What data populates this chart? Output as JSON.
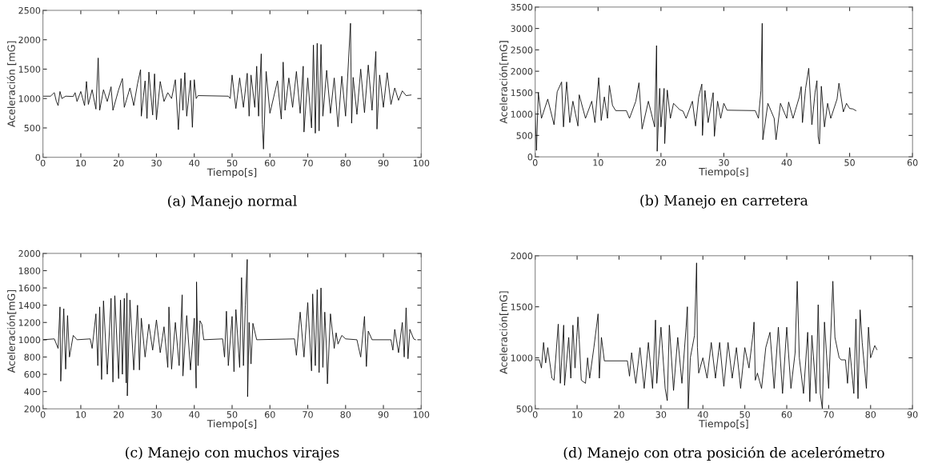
{
  "chart_data": [
    {
      "type": "line",
      "title": "(a) Manejo normal",
      "xlabel": "Tiempo[s]",
      "ylabel": "Aceleración [mG]",
      "xlim": [
        0,
        100
      ],
      "ylim": [
        0,
        2500
      ],
      "xticks": [
        0,
        10,
        20,
        30,
        40,
        50,
        60,
        70,
        80,
        90,
        100
      ],
      "yticks": [
        0,
        500,
        1000,
        1500,
        2000,
        2500
      ],
      "grid": false,
      "marker": "none",
      "line_style": "solid",
      "x": [
        0,
        2,
        3,
        3.5,
        4,
        4.5,
        5,
        6,
        8,
        8.5,
        9,
        10,
        11,
        11.5,
        12,
        13,
        14,
        14.6,
        15,
        16,
        17,
        18,
        18.5,
        20,
        21,
        21.5,
        23,
        24,
        25,
        25.8,
        26,
        27,
        27.5,
        28,
        29,
        29.5,
        30,
        31,
        32,
        33,
        34,
        35,
        35.8,
        36.5,
        37,
        37.5,
        38,
        39,
        39.5,
        40,
        40.5,
        41,
        49,
        49.5,
        50,
        51,
        52,
        53,
        54,
        54.5,
        55,
        56,
        56.5,
        57,
        57.7,
        58,
        58.3,
        59,
        60,
        62,
        63,
        63.5,
        64,
        65,
        66,
        67,
        68,
        68.8,
        69,
        70,
        71,
        71.5,
        72,
        72.5,
        73,
        73.5,
        74,
        75,
        76,
        77,
        78,
        79,
        80,
        81.3,
        81.6,
        82,
        83,
        84,
        85,
        86,
        87,
        88,
        88.3,
        89,
        90,
        91,
        92,
        93,
        94,
        95,
        96,
        97.3
      ],
      "series": [
        {
          "color": "#000000",
          "values": [
            1040,
            1040,
            1100,
            960,
            880,
            1120,
            1000,
            1040,
            1035,
            1100,
            950,
            1120,
            880,
            1290,
            900,
            1150,
            820,
            1690,
            800,
            1150,
            950,
            1200,
            800,
            1150,
            1340,
            850,
            1180,
            880,
            1250,
            1490,
            700,
            1300,
            660,
            1450,
            720,
            1420,
            640,
            1290,
            950,
            1100,
            1000,
            1320,
            470,
            1340,
            800,
            1440,
            700,
            1310,
            510,
            1320,
            1000,
            1050,
            1040,
            1000,
            1400,
            830,
            1350,
            850,
            1430,
            700,
            1400,
            850,
            1550,
            700,
            1760,
            560,
            140,
            1460,
            750,
            1300,
            650,
            1620,
            800,
            1350,
            850,
            1460,
            750,
            1550,
            430,
            1350,
            500,
            1910,
            410,
            1940,
            450,
            1920,
            700,
            1480,
            750,
            1350,
            520,
            1380,
            700,
            2280,
            580,
            1360,
            730,
            1500,
            760,
            1570,
            800,
            1800,
            480,
            1400,
            850,
            1440,
            900,
            1180,
            970,
            1130,
            1050,
            1060
          ]
        }
      ]
    },
    {
      "type": "line",
      "title": "(b) Manejo en carretera",
      "xlabel": "Tiempo[s]",
      "ylabel": "Aceleración[mG]",
      "xlim": [
        0,
        60
      ],
      "ylim": [
        0,
        3500
      ],
      "xticks": [
        0,
        10,
        20,
        30,
        40,
        50,
        60
      ],
      "yticks": [
        0,
        500,
        1000,
        1500,
        2000,
        2500,
        3000,
        3500
      ],
      "grid": false,
      "marker": "none",
      "line_style": "solid",
      "x": [
        0,
        0.2,
        0.5,
        1,
        2,
        3,
        3.5,
        4.2,
        4.5,
        5,
        5.5,
        6,
        6.8,
        7,
        8,
        9,
        9.5,
        10.1,
        10.5,
        11,
        11.5,
        11.8,
        12.3,
        12.8,
        14.5,
        15,
        16,
        16.5,
        17,
        18,
        19,
        19.3,
        19.4,
        19.8,
        20,
        20.5,
        20.6,
        21,
        21.5,
        22,
        23,
        23.5,
        24,
        25,
        25.5,
        26,
        26.5,
        26.6,
        27,
        27.5,
        28.3,
        28.5,
        29,
        29.5,
        30,
        30.5,
        35,
        35.5,
        35.9,
        36.1,
        36.2,
        37,
        38,
        38.3,
        39,
        40,
        40.3,
        41,
        42,
        42.3,
        42.5,
        43,
        43.5,
        44,
        44.5,
        44.8,
        45,
        45.2,
        45.5,
        46,
        46.5,
        47,
        48,
        48.3,
        49,
        49.5,
        50,
        50.5,
        51
      ],
      "series": [
        {
          "color": "#000000",
          "values": [
            1050,
            150,
            1500,
            900,
            1350,
            750,
            1520,
            1750,
            700,
            1750,
            800,
            1300,
            720,
            1450,
            900,
            1300,
            800,
            1850,
            850,
            1400,
            900,
            1670,
            1200,
            1080,
            1080,
            900,
            1300,
            1730,
            650,
            1300,
            700,
            2600,
            130,
            1600,
            700,
            1600,
            310,
            1560,
            900,
            1250,
            1100,
            1070,
            900,
            1300,
            720,
            1400,
            1700,
            500,
            1550,
            800,
            1500,
            480,
            1300,
            900,
            1250,
            1090,
            1080,
            900,
            1550,
            3120,
            400,
            1250,
            900,
            400,
            1250,
            900,
            1280,
            900,
            1400,
            1640,
            800,
            1600,
            2070,
            750,
            1500,
            1780,
            470,
            300,
            1650,
            700,
            1250,
            900,
            1350,
            1720,
            1050,
            1250,
            1130,
            1120,
            1080
          ]
        }
      ]
    },
    {
      "type": "line",
      "title": "(c) Manejo con muchos virajes",
      "xlabel": "Tiempo[s]",
      "ylabel": "Aceleración[mG]",
      "xlim": [
        0,
        100
      ],
      "ylim": [
        200,
        2000
      ],
      "xticks": [
        0,
        10,
        20,
        30,
        40,
        50,
        60,
        70,
        80,
        90,
        100
      ],
      "yticks": [
        200,
        400,
        600,
        800,
        1000,
        1200,
        1400,
        1600,
        1800,
        2000
      ],
      "grid": false,
      "marker": "none",
      "line_style": "solid",
      "x": [
        0,
        3,
        4,
        4.5,
        4.7,
        5.5,
        6,
        6.5,
        7,
        8,
        9,
        12.5,
        13,
        14,
        14.5,
        15,
        15.5,
        16,
        17,
        18,
        18.5,
        19,
        20,
        20.5,
        21,
        21.5,
        22,
        22.2,
        22.3,
        23,
        24,
        25,
        25.5,
        26,
        27,
        28,
        29,
        30,
        31,
        32,
        33,
        33.3,
        34,
        35,
        36,
        36.8,
        37,
        38,
        39,
        40,
        40.5,
        40.6,
        41,
        41.5,
        42,
        42.5,
        47.5,
        48,
        48.5,
        49,
        50,
        50.5,
        51,
        52,
        52.5,
        53,
        53.5,
        54,
        54.1,
        54.5,
        55,
        55.5,
        56.5,
        66.5,
        67,
        68,
        69,
        70,
        71,
        71.3,
        72,
        72.5,
        73,
        73.5,
        74,
        74.5,
        75,
        75.2,
        76,
        77,
        77.5,
        78,
        79,
        80,
        83,
        84,
        85,
        85.5,
        86,
        87,
        92,
        92.5,
        93,
        94,
        95,
        95.5,
        96,
        96.5,
        97,
        98,
        98.5
      ],
      "series": [
        {
          "color": "#000000",
          "values": [
            1000,
            1010,
            900,
            1380,
            520,
            1360,
            660,
            1280,
            800,
            1050,
            1000,
            1010,
            900,
            1300,
            700,
            1380,
            540,
            1450,
            600,
            1480,
            510,
            1510,
            550,
            1460,
            600,
            1480,
            500,
            1540,
            350,
            1460,
            650,
            1400,
            650,
            1250,
            800,
            1180,
            880,
            1230,
            850,
            1150,
            680,
            1380,
            660,
            1200,
            700,
            1520,
            580,
            1280,
            650,
            1250,
            440,
            1670,
            700,
            1220,
            1180,
            1000,
            1010,
            800,
            1330,
            700,
            1270,
            630,
            1350,
            680,
            1720,
            700,
            1400,
            1930,
            340,
            1200,
            720,
            1190,
            1000,
            1010,
            820,
            1320,
            800,
            1430,
            640,
            1530,
            700,
            1580,
            620,
            1600,
            680,
            1320,
            850,
            490,
            1300,
            900,
            1080,
            950,
            1050,
            1010,
            1000,
            800,
            1270,
            690,
            1100,
            1000,
            1000,
            880,
            1120,
            850,
            1200,
            800,
            1370,
            780,
            1120,
            1010,
            1000
          ]
        }
      ]
    },
    {
      "type": "line",
      "title": "(d) Manejo con otra posición de acelerómetro",
      "xlabel": "Tiempo[s]",
      "ylabel": "Aceleración[mG]",
      "xlim": [
        0,
        90
      ],
      "ylim": [
        500,
        2000
      ],
      "xticks": [
        0,
        10,
        20,
        30,
        40,
        50,
        60,
        70,
        80,
        90
      ],
      "yticks": [
        500,
        1000,
        1500,
        2000
      ],
      "grid": false,
      "marker": "none",
      "line_style": "solid",
      "x": [
        0,
        1,
        1.5,
        2,
        2.5,
        3,
        4,
        4.5,
        5,
        5.5,
        6,
        6.8,
        7,
        8,
        8.5,
        9,
        9.5,
        10,
        10.2,
        10.5,
        11,
        12,
        12.5,
        13,
        14,
        15,
        15.3,
        15.8,
        16.5,
        22,
        22.5,
        23,
        24,
        25,
        26,
        27,
        28,
        28.7,
        29,
        30,
        31,
        31.5,
        32,
        33,
        34,
        35,
        36,
        36.3,
        36.5,
        37,
        38,
        38.5,
        38.7,
        39,
        40,
        41,
        42,
        43,
        44,
        45,
        46,
        47,
        48,
        49,
        50,
        51,
        52,
        52.2,
        52.5,
        53,
        54,
        55,
        56,
        57,
        58,
        59,
        60,
        61,
        62,
        62.5,
        63,
        64,
        65,
        65.5,
        66,
        67,
        67.5,
        68,
        68.5,
        69,
        70,
        71,
        71.5,
        72.5,
        73,
        74,
        74.5,
        75,
        76,
        76.5,
        77,
        77.5,
        78,
        79,
        79.5,
        80,
        81,
        81.5
      ],
      "series": [
        {
          "color": "#000000",
          "values": [
            980,
            980,
            900,
            1150,
            950,
            1100,
            800,
            780,
            1050,
            1330,
            750,
            1320,
            730,
            1200,
            800,
            1320,
            900,
            1250,
            1400,
            1180,
            780,
            750,
            1000,
            800,
            1100,
            1430,
            800,
            1200,
            970,
            970,
            820,
            1050,
            750,
            1100,
            700,
            1150,
            700,
            1370,
            750,
            1300,
            700,
            580,
            1320,
            680,
            1200,
            750,
            1300,
            1500,
            500,
            1000,
            1220,
            1930,
            1100,
            850,
            1000,
            800,
            1150,
            800,
            1150,
            720,
            1150,
            800,
            1100,
            700,
            1100,
            900,
            1250,
            1350,
            780,
            850,
            700,
            1100,
            1250,
            700,
            1300,
            650,
            1300,
            700,
            1050,
            1750,
            1000,
            650,
            1250,
            570,
            1220,
            650,
            1520,
            650,
            500,
            1350,
            700,
            1750,
            1200,
            1000,
            980,
            980,
            750,
            1100,
            650,
            1380,
            600,
            1470,
            1150,
            700,
            1300,
            1000,
            1120,
            1080
          ]
        }
      ]
    }
  ]
}
